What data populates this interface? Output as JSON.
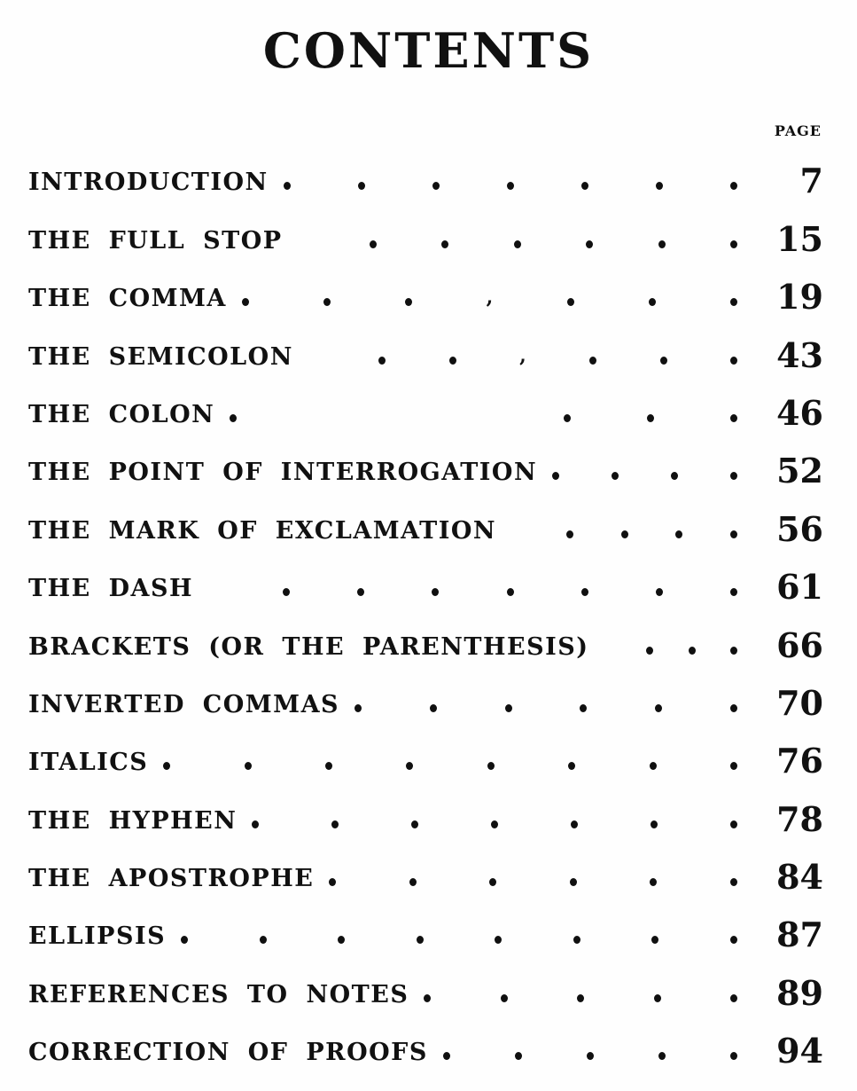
{
  "page": {
    "title": "CONTENTS",
    "column_header": "PAGE",
    "ink_color": "#111111",
    "paper_color": "#fefefe"
  },
  "leader_glyphs": {
    "dot": "•",
    "tick": ","
  },
  "toc": {
    "entries": [
      {
        "label": "INTRODUCTION",
        "page": "7",
        "leader": [
          "d",
          "d",
          "d",
          "d",
          "d",
          "d",
          "d"
        ]
      },
      {
        "label": "THE FULL STOP",
        "page": "15",
        "leader": [
          "g",
          "d",
          "d",
          "d",
          "d",
          "d",
          "d"
        ]
      },
      {
        "label": "THE COMMA",
        "page": "19",
        "leader": [
          "d",
          "d",
          "d",
          "t",
          "d",
          "d",
          "d"
        ]
      },
      {
        "label": "THE SEMICOLON",
        "page": "43",
        "leader": [
          "g",
          "d",
          "d",
          "t",
          "d",
          "d",
          "d"
        ]
      },
      {
        "label": "THE COLON",
        "page": "46",
        "leader": [
          "d",
          "g",
          "g",
          "g",
          "d",
          "d",
          "d"
        ]
      },
      {
        "label": "THE POINT OF INTERROGATION",
        "page": "52",
        "leader": [
          "d",
          "d",
          "d",
          "d"
        ]
      },
      {
        "label": "THE MARK OF EXCLAMATION",
        "page": "56",
        "leader": [
          "g",
          "d",
          "d",
          "d",
          "d"
        ]
      },
      {
        "label": "THE DASH",
        "page": "61",
        "leader": [
          "g",
          "d",
          "d",
          "d",
          "d",
          "d",
          "d",
          "d"
        ]
      },
      {
        "label": "BRACKETS (OR THE PARENTHESIS)",
        "page": "66",
        "leader": [
          "g",
          "d",
          "d",
          "d"
        ]
      },
      {
        "label": "INVERTED COMMAS",
        "page": "70",
        "leader": [
          "d",
          "d",
          "d",
          "d",
          "d",
          "d"
        ]
      },
      {
        "label": "ITALICS",
        "page": "76",
        "leader": [
          "d",
          "d",
          "d",
          "d",
          "d",
          "d",
          "d",
          "d"
        ]
      },
      {
        "label": "THE HYPHEN",
        "page": "78",
        "leader": [
          "d",
          "d",
          "d",
          "d",
          "d",
          "d",
          "d"
        ]
      },
      {
        "label": "THE APOSTROPHE",
        "page": "84",
        "leader": [
          "d",
          "d",
          "d",
          "d",
          "d",
          "d"
        ]
      },
      {
        "label": "ELLIPSIS",
        "page": "87",
        "leader": [
          "d",
          "d",
          "d",
          "d",
          "d",
          "d",
          "d",
          "d"
        ]
      },
      {
        "label": "REFERENCES TO NOTES",
        "page": "89",
        "leader": [
          "d",
          "d",
          "d",
          "d",
          "d"
        ]
      },
      {
        "label": "CORRECTION OF PROOFS",
        "page": "94",
        "leader": [
          "d",
          "d",
          "d",
          "d",
          "d"
        ]
      }
    ]
  }
}
